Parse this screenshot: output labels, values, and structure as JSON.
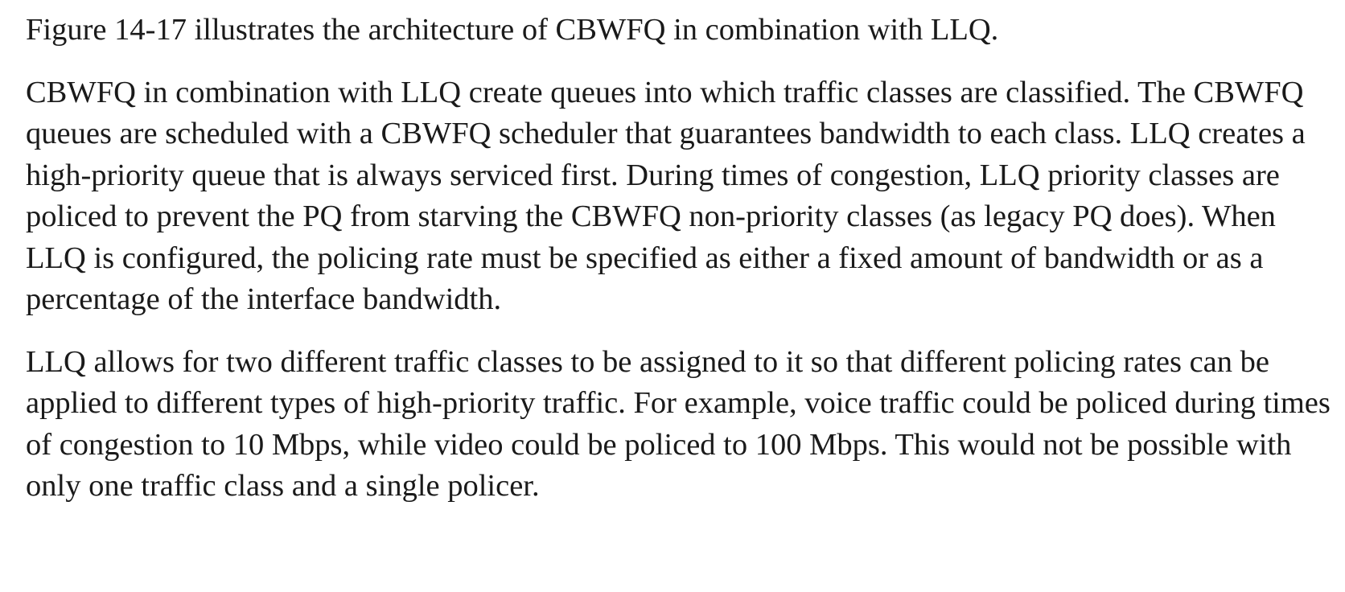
{
  "document": {
    "paragraphs": [
      "Figure 14-17 illustrates the architecture of CBWFQ in combination with LLQ.",
      "CBWFQ in combination with LLQ create queues into which traffic classes are classified. The CBWFQ queues are scheduled with a CBWFQ scheduler that guarantees bandwidth to each class. LLQ creates a high-priority queue that is always serviced first. During times of congestion, LLQ priority classes are policed to prevent the PQ from starving the CBWFQ non-priority classes (as legacy PQ does). When LLQ is configured, the policing rate must be specified as either a fixed amount of bandwidth or as a percentage of the interface bandwidth.",
      "LLQ allows for two different traffic classes to be assigned to it so that different policing rates can be applied to different types of high-priority traffic. For example, voice traffic could be policed during times of congestion to 10 Mbps, while video could be policed to 100 Mbps. This would not be possible with only one traffic class and a single policer."
    ]
  }
}
